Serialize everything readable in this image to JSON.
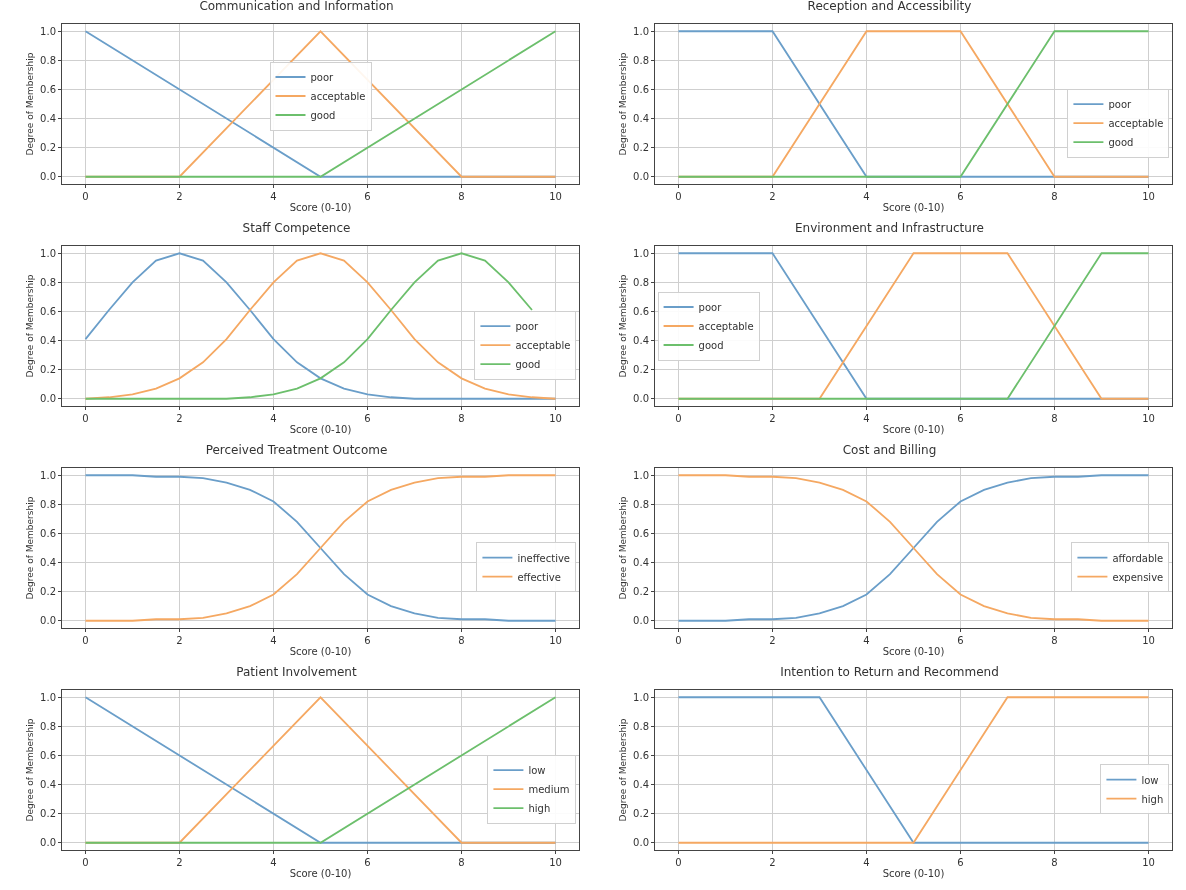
{
  "chart_data": [
    {
      "type": "line",
      "title": "Communication and Information",
      "xlabel": "Score (0-10)",
      "ylabel": "Degree of Membership",
      "xlim": [
        -0.5,
        10.5
      ],
      "xticks": [
        0,
        2,
        4,
        6,
        8,
        10
      ],
      "ylim": [
        -0.05,
        1.05
      ],
      "yticks": [
        {
          "value": 0,
          "label": "0.0"
        },
        {
          "value": 0.2,
          "label": "0.2"
        },
        {
          "value": 0.4,
          "label": "0.4"
        },
        {
          "value": 0.6,
          "label": "0.6"
        },
        {
          "value": 0.8,
          "label": "0.8"
        },
        {
          "value": 1,
          "label": "1.0"
        }
      ],
      "grid": true,
      "legend": "center",
      "marker": "none",
      "line_style": "solid",
      "series": [
        {
          "name": "poor",
          "color": "#6a9ec9",
          "x": [
            0,
            5,
            10
          ],
          "values": [
            1,
            0,
            0
          ]
        },
        {
          "name": "acceptable",
          "color": "#f5a862",
          "x": [
            0,
            2,
            5,
            8,
            10
          ],
          "values": [
            0,
            0,
            1,
            0,
            0
          ]
        },
        {
          "name": "good",
          "color": "#6cbf6c",
          "x": [
            0,
            5,
            10
          ],
          "values": [
            0,
            0,
            1
          ]
        }
      ]
    },
    {
      "type": "line",
      "title": "Reception and Accessibility",
      "xlabel": "Score (0-10)",
      "ylabel": "Degree of Membership",
      "xlim": [
        -0.5,
        10.5
      ],
      "xticks": [
        0,
        2,
        4,
        6,
        8,
        10
      ],
      "ylim": [
        -0.05,
        1.05
      ],
      "yticks": [
        {
          "value": 0,
          "label": "0.0"
        },
        {
          "value": 0.2,
          "label": "0.2"
        },
        {
          "value": 0.4,
          "label": "0.4"
        },
        {
          "value": 0.6,
          "label": "0.6"
        },
        {
          "value": 0.8,
          "label": "0.8"
        },
        {
          "value": 1,
          "label": "1.0"
        }
      ],
      "grid": true,
      "legend": "right",
      "marker": "none",
      "line_style": "solid",
      "series": [
        {
          "name": "poor",
          "color": "#6a9ec9",
          "x": [
            0,
            2,
            4,
            10
          ],
          "values": [
            1,
            1,
            0,
            0
          ]
        },
        {
          "name": "acceptable",
          "color": "#f5a862",
          "x": [
            0,
            2,
            4,
            6,
            8,
            10
          ],
          "values": [
            0,
            0,
            1,
            1,
            0,
            0
          ]
        },
        {
          "name": "good",
          "color": "#6cbf6c",
          "x": [
            0,
            6,
            8,
            10
          ],
          "values": [
            0,
            0,
            1,
            1
          ]
        }
      ]
    },
    {
      "type": "line",
      "title": "Staff Competence",
      "xlabel": "Score (0-10)",
      "ylabel": "Degree of Membership",
      "xlim": [
        -0.5,
        10.5
      ],
      "xticks": [
        0,
        2,
        4,
        6,
        8,
        10
      ],
      "ylim": [
        -0.05,
        1.05
      ],
      "yticks": [
        {
          "value": 0,
          "label": "0.0"
        },
        {
          "value": 0.2,
          "label": "0.2"
        },
        {
          "value": 0.4,
          "label": "0.4"
        },
        {
          "value": 0.6,
          "label": "0.6"
        },
        {
          "value": 0.8,
          "label": "0.8"
        },
        {
          "value": 1,
          "label": "1.0"
        }
      ],
      "grid": true,
      "legend": "right",
      "marker": "none",
      "line_style": "solid",
      "x": [
        0,
        0.5,
        1,
        1.5,
        2,
        2.5,
        3,
        3.5,
        4,
        4.5,
        5,
        5.5,
        6,
        6.5,
        7,
        7.5,
        8,
        8.5,
        9,
        9.5,
        10
      ],
      "series": [
        {
          "name": "poor",
          "color": "#6a9ec9",
          "values": [
            0.41,
            0.61,
            0.8,
            0.95,
            1,
            0.95,
            0.8,
            0.61,
            0.41,
            0.25,
            0.14,
            0.07,
            0.03,
            0.01,
            0,
            0,
            0,
            0,
            0,
            0,
            0
          ]
        },
        {
          "name": "acceptable",
          "color": "#f5a862",
          "values": [
            0,
            0.01,
            0.03,
            0.07,
            0.14,
            0.25,
            0.41,
            0.61,
            0.8,
            0.95,
            1,
            0.95,
            0.8,
            0.61,
            0.41,
            0.25,
            0.14,
            0.07,
            0.03,
            0.01,
            0
          ]
        },
        {
          "name": "good",
          "color": "#6cbf6c",
          "values": [
            0,
            0,
            0,
            0,
            0,
            0,
            0,
            0.01,
            0.03,
            0.07,
            0.14,
            0.25,
            0.41,
            0.61,
            0.8,
            0.95,
            1,
            0.95,
            0.8,
            0.61,
            null
          ]
        }
      ]
    },
    {
      "type": "line",
      "title": "Environment and Infrastructure",
      "xlabel": "Score (0-10)",
      "ylabel": "Degree of Membership",
      "xlim": [
        -0.5,
        10.5
      ],
      "xticks": [
        0,
        2,
        4,
        6,
        8,
        10
      ],
      "ylim": [
        -0.05,
        1.05
      ],
      "yticks": [
        {
          "value": 0,
          "label": "0.0"
        },
        {
          "value": 0.2,
          "label": "0.2"
        },
        {
          "value": 0.4,
          "label": "0.4"
        },
        {
          "value": 0.6,
          "label": "0.6"
        },
        {
          "value": 0.8,
          "label": "0.8"
        },
        {
          "value": 1,
          "label": "1.0"
        }
      ],
      "grid": true,
      "legend": "left",
      "marker": "none",
      "line_style": "solid",
      "series": [
        {
          "name": "poor",
          "color": "#6a9ec9",
          "x": [
            0,
            2,
            4,
            10
          ],
          "values": [
            1,
            1,
            0,
            0
          ]
        },
        {
          "name": "acceptable",
          "color": "#f5a862",
          "x": [
            0,
            3,
            5,
            7,
            9,
            10
          ],
          "values": [
            0,
            0,
            1,
            1,
            0,
            0
          ]
        },
        {
          "name": "good",
          "color": "#6cbf6c",
          "x": [
            0,
            7,
            9,
            10
          ],
          "values": [
            0,
            0,
            1,
            1
          ]
        }
      ]
    },
    {
      "type": "line",
      "title": "Perceived Treatment Outcome",
      "xlabel": "Score (0-10)",
      "ylabel": "Degree of Membership",
      "xlim": [
        -0.5,
        10.5
      ],
      "xticks": [
        0,
        2,
        4,
        6,
        8,
        10
      ],
      "ylim": [
        -0.05,
        1.05
      ],
      "yticks": [
        {
          "value": 0,
          "label": "0.0"
        },
        {
          "value": 0.2,
          "label": "0.2"
        },
        {
          "value": 0.4,
          "label": "0.4"
        },
        {
          "value": 0.6,
          "label": "0.6"
        },
        {
          "value": 0.8,
          "label": "0.8"
        },
        {
          "value": 1,
          "label": "1.0"
        }
      ],
      "grid": true,
      "legend": "right",
      "marker": "none",
      "line_style": "solid",
      "x": [
        0,
        0.5,
        1,
        1.5,
        2,
        2.5,
        3,
        3.5,
        4,
        4.5,
        5,
        5.5,
        6,
        6.5,
        7,
        7.5,
        8,
        8.5,
        9,
        9.5,
        10
      ],
      "series": [
        {
          "name": "ineffective",
          "color": "#6a9ec9",
          "values": [
            1,
            1,
            1,
            0.99,
            0.99,
            0.98,
            0.95,
            0.9,
            0.82,
            0.68,
            0.5,
            0.32,
            0.18,
            0.1,
            0.05,
            0.02,
            0.01,
            0.01,
            0,
            0,
            0
          ]
        },
        {
          "name": "effective",
          "color": "#f5a862",
          "values": [
            0,
            0,
            0,
            0.01,
            0.01,
            0.02,
            0.05,
            0.1,
            0.18,
            0.32,
            0.5,
            0.68,
            0.82,
            0.9,
            0.95,
            0.98,
            0.99,
            0.99,
            1,
            1,
            1
          ]
        }
      ]
    },
    {
      "type": "line",
      "title": "Cost and Billing",
      "xlabel": "Score (0-10)",
      "ylabel": "Degree of Membership",
      "xlim": [
        -0.5,
        10.5
      ],
      "xticks": [
        0,
        2,
        4,
        6,
        8,
        10
      ],
      "ylim": [
        -0.05,
        1.05
      ],
      "yticks": [
        {
          "value": 0,
          "label": "0.0"
        },
        {
          "value": 0.2,
          "label": "0.2"
        },
        {
          "value": 0.4,
          "label": "0.4"
        },
        {
          "value": 0.6,
          "label": "0.6"
        },
        {
          "value": 0.8,
          "label": "0.8"
        },
        {
          "value": 1,
          "label": "1.0"
        }
      ],
      "grid": true,
      "legend": "right",
      "marker": "none",
      "line_style": "solid",
      "x": [
        0,
        0.5,
        1,
        1.5,
        2,
        2.5,
        3,
        3.5,
        4,
        4.5,
        5,
        5.5,
        6,
        6.5,
        7,
        7.5,
        8,
        8.5,
        9,
        9.5,
        10
      ],
      "series": [
        {
          "name": "affordable",
          "color": "#6a9ec9",
          "values": [
            0,
            0,
            0,
            0.01,
            0.01,
            0.02,
            0.05,
            0.1,
            0.18,
            0.32,
            0.5,
            0.68,
            0.82,
            0.9,
            0.95,
            0.98,
            0.99,
            0.99,
            1,
            1,
            1
          ]
        },
        {
          "name": "expensive",
          "color": "#f5a862",
          "values": [
            1,
            1,
            1,
            0.99,
            0.99,
            0.98,
            0.95,
            0.9,
            0.82,
            0.68,
            0.5,
            0.32,
            0.18,
            0.1,
            0.05,
            0.02,
            0.01,
            0.01,
            0,
            0,
            0
          ]
        }
      ]
    },
    {
      "type": "line",
      "title": "Patient Involvement",
      "xlabel": "Score (0-10)",
      "ylabel": "Degree of Membership",
      "xlim": [
        -0.5,
        10.5
      ],
      "xticks": [
        0,
        2,
        4,
        6,
        8,
        10
      ],
      "ylim": [
        -0.05,
        1.05
      ],
      "yticks": [
        {
          "value": 0,
          "label": "0.0"
        },
        {
          "value": 0.2,
          "label": "0.2"
        },
        {
          "value": 0.4,
          "label": "0.4"
        },
        {
          "value": 0.6,
          "label": "0.6"
        },
        {
          "value": 0.8,
          "label": "0.8"
        },
        {
          "value": 1,
          "label": "1.0"
        }
      ],
      "grid": true,
      "legend": "right",
      "marker": "none",
      "line_style": "solid",
      "series": [
        {
          "name": "low",
          "color": "#6a9ec9",
          "x": [
            0,
            5,
            10
          ],
          "values": [
            1,
            0,
            0
          ]
        },
        {
          "name": "medium",
          "color": "#f5a862",
          "x": [
            0,
            2,
            5,
            8,
            10
          ],
          "values": [
            0,
            0,
            1,
            0,
            0
          ]
        },
        {
          "name": "high",
          "color": "#6cbf6c",
          "x": [
            0,
            5,
            10
          ],
          "values": [
            0,
            0,
            1
          ]
        }
      ]
    },
    {
      "type": "line",
      "title": "Intention to Return and Recommend",
      "xlabel": "Score (0-10)",
      "ylabel": "Degree of Membership",
      "xlim": [
        -0.5,
        10.5
      ],
      "xticks": [
        0,
        2,
        4,
        6,
        8,
        10
      ],
      "ylim": [
        -0.05,
        1.05
      ],
      "yticks": [
        {
          "value": 0,
          "label": "0.0"
        },
        {
          "value": 0.2,
          "label": "0.2"
        },
        {
          "value": 0.4,
          "label": "0.4"
        },
        {
          "value": 0.6,
          "label": "0.6"
        },
        {
          "value": 0.8,
          "label": "0.8"
        },
        {
          "value": 1,
          "label": "1.0"
        }
      ],
      "grid": true,
      "legend": "right",
      "marker": "none",
      "line_style": "solid",
      "series": [
        {
          "name": "low",
          "color": "#6a9ec9",
          "x": [
            0,
            3,
            5,
            10
          ],
          "values": [
            1,
            1,
            0,
            0
          ]
        },
        {
          "name": "high",
          "color": "#f5a862",
          "x": [
            0,
            5,
            7,
            10
          ],
          "values": [
            0,
            0,
            1,
            1
          ]
        }
      ]
    }
  ]
}
